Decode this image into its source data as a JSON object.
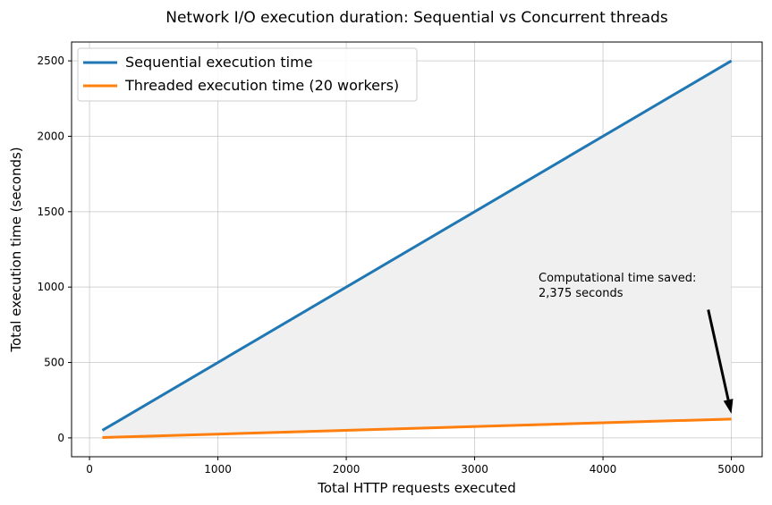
{
  "chart_data": {
    "type": "line",
    "title": "Network I/O execution duration: Sequential vs Concurrent threads",
    "xlabel": "Total HTTP requests executed",
    "ylabel": "Total execution time (seconds)",
    "xlim": [
      -140,
      5240
    ],
    "ylim": [
      -125,
      2625
    ],
    "xticks": [
      0,
      1000,
      2000,
      3000,
      4000,
      5000
    ],
    "yticks": [
      0,
      500,
      1000,
      1500,
      2000,
      2500
    ],
    "grid": true,
    "legend_position": "top-left",
    "series": [
      {
        "name": "Sequential execution time",
        "color": "#1f77b4",
        "x": [
          100,
          5000
        ],
        "y": [
          50,
          2500
        ]
      },
      {
        "name": "Threaded execution time (20 workers)",
        "color": "#ff7f0e",
        "x": [
          100,
          5000
        ],
        "y": [
          2.5,
          125
        ]
      }
    ],
    "shaded_region": {
      "between": [
        "Sequential execution time",
        "Threaded execution time (20 workers)"
      ],
      "color": "#f0f0f0"
    },
    "annotation": {
      "lines": [
        "Computational time saved:",
        "2,375 seconds"
      ],
      "text_at": [
        3500,
        1000
      ],
      "arrow_from": [
        4820,
        850
      ],
      "arrow_to": [
        5000,
        160
      ]
    }
  }
}
